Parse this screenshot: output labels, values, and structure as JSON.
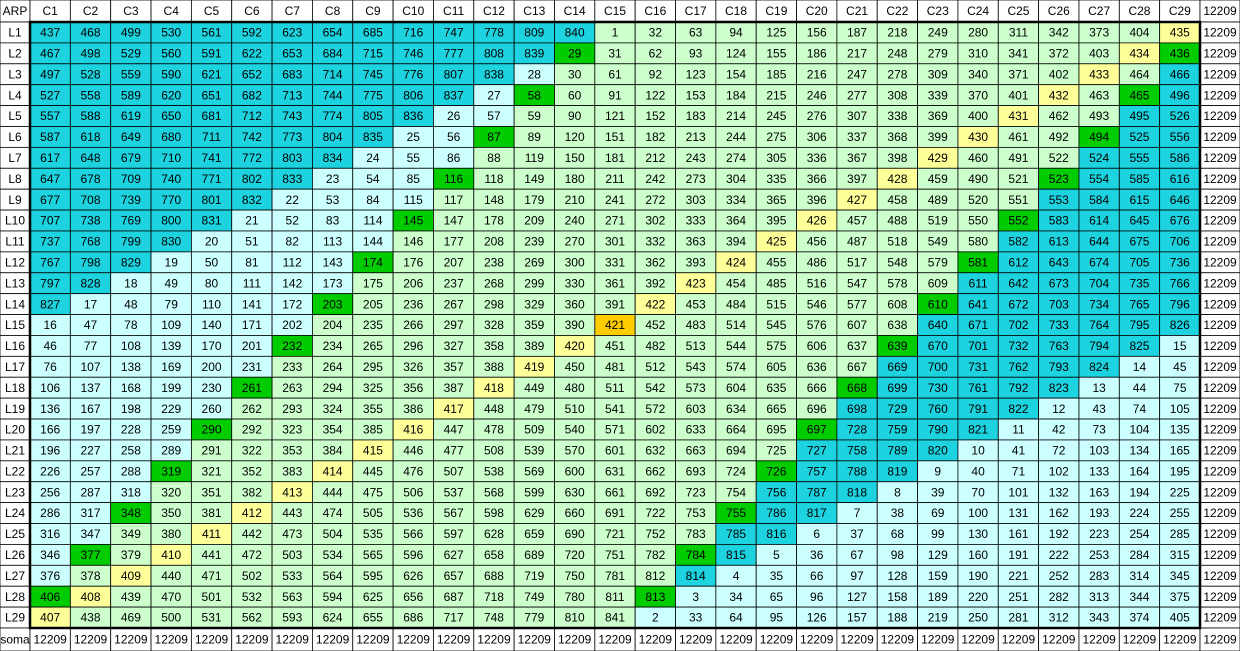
{
  "table": {
    "corner": "ARP",
    "columns": [
      "C1",
      "C2",
      "C3",
      "C4",
      "C5",
      "C6",
      "C7",
      "C8",
      "C9",
      "C10",
      "C11",
      "C12",
      "C13",
      "C14",
      "C15",
      "C16",
      "C17",
      "C18",
      "C19",
      "C20",
      "C21",
      "C22",
      "C23",
      "C24",
      "C25",
      "C26",
      "C27",
      "C28",
      "C29"
    ],
    "header_total": 12209,
    "rows": [
      {
        "label": "L1",
        "values": [
          437,
          468,
          499,
          530,
          561,
          592,
          623,
          654,
          685,
          716,
          747,
          778,
          809,
          840,
          1,
          32,
          63,
          94,
          125,
          156,
          187,
          218,
          249,
          280,
          311,
          342,
          373,
          404,
          435
        ],
        "total": 12209
      },
      {
        "label": "L2",
        "values": [
          467,
          498,
          529,
          560,
          591,
          622,
          653,
          684,
          715,
          746,
          777,
          808,
          839,
          29,
          31,
          62,
          93,
          124,
          155,
          186,
          217,
          248,
          279,
          310,
          341,
          372,
          403,
          434,
          436
        ],
        "total": 12209
      },
      {
        "label": "L3",
        "values": [
          497,
          528,
          559,
          590,
          621,
          652,
          683,
          714,
          745,
          776,
          807,
          838,
          28,
          30,
          61,
          92,
          123,
          154,
          185,
          216,
          247,
          278,
          309,
          340,
          371,
          402,
          433,
          464,
          466
        ],
        "total": 12209
      },
      {
        "label": "L4",
        "values": [
          527,
          558,
          589,
          620,
          651,
          682,
          713,
          744,
          775,
          806,
          837,
          27,
          58,
          60,
          91,
          122,
          153,
          184,
          215,
          246,
          277,
          308,
          339,
          370,
          401,
          432,
          463,
          465,
          496
        ],
        "total": 12209
      },
      {
        "label": "L5",
        "values": [
          557,
          588,
          619,
          650,
          681,
          712,
          743,
          774,
          805,
          836,
          26,
          57,
          59,
          90,
          121,
          152,
          183,
          214,
          245,
          276,
          307,
          338,
          369,
          400,
          431,
          462,
          493,
          495,
          526
        ],
        "total": 12209
      },
      {
        "label": "L6",
        "values": [
          587,
          618,
          649,
          680,
          711,
          742,
          773,
          804,
          835,
          25,
          56,
          87,
          89,
          120,
          151,
          182,
          213,
          244,
          275,
          306,
          337,
          368,
          399,
          430,
          461,
          492,
          494,
          525,
          556
        ],
        "total": 12209
      },
      {
        "label": "L7",
        "values": [
          617,
          648,
          679,
          710,
          741,
          772,
          803,
          834,
          24,
          55,
          86,
          88,
          119,
          150,
          181,
          212,
          243,
          274,
          305,
          336,
          367,
          398,
          429,
          460,
          491,
          522,
          524,
          555,
          586
        ],
        "total": 12209
      },
      {
        "label": "L8",
        "values": [
          647,
          678,
          709,
          740,
          771,
          802,
          833,
          23,
          54,
          85,
          116,
          118,
          149,
          180,
          211,
          242,
          273,
          304,
          335,
          366,
          397,
          428,
          459,
          490,
          521,
          523,
          554,
          585,
          616
        ],
        "total": 12209
      },
      {
        "label": "L9",
        "values": [
          677,
          708,
          739,
          770,
          801,
          832,
          22,
          53,
          84,
          115,
          117,
          148,
          179,
          210,
          241,
          272,
          303,
          334,
          365,
          396,
          427,
          458,
          489,
          520,
          551,
          553,
          584,
          615,
          646
        ],
        "total": 12209
      },
      {
        "label": "L10",
        "values": [
          707,
          738,
          769,
          800,
          831,
          21,
          52,
          83,
          114,
          145,
          147,
          178,
          209,
          240,
          271,
          302,
          333,
          364,
          395,
          426,
          457,
          488,
          519,
          550,
          552,
          583,
          614,
          645,
          676
        ],
        "total": 12209
      },
      {
        "label": "L11",
        "values": [
          737,
          768,
          799,
          830,
          20,
          51,
          82,
          113,
          144,
          146,
          177,
          208,
          239,
          270,
          301,
          332,
          363,
          394,
          425,
          456,
          487,
          518,
          549,
          580,
          582,
          613,
          644,
          675,
          706
        ],
        "total": 12209
      },
      {
        "label": "L12",
        "values": [
          767,
          798,
          829,
          19,
          50,
          81,
          112,
          143,
          174,
          176,
          207,
          238,
          269,
          300,
          331,
          362,
          393,
          424,
          455,
          486,
          517,
          548,
          579,
          581,
          612,
          643,
          674,
          705,
          736
        ],
        "total": 12209
      },
      {
        "label": "L13",
        "values": [
          797,
          828,
          18,
          49,
          80,
          111,
          142,
          173,
          175,
          206,
          237,
          268,
          299,
          330,
          361,
          392,
          423,
          454,
          485,
          516,
          547,
          578,
          609,
          611,
          642,
          673,
          704,
          735,
          766
        ],
        "total": 12209
      },
      {
        "label": "L14",
        "values": [
          827,
          17,
          48,
          79,
          110,
          141,
          172,
          203,
          205,
          236,
          267,
          298,
          329,
          360,
          391,
          422,
          453,
          484,
          515,
          546,
          577,
          608,
          610,
          641,
          672,
          703,
          734,
          765,
          796
        ],
        "total": 12209
      },
      {
        "label": "L15",
        "values": [
          16,
          47,
          78,
          109,
          140,
          171,
          202,
          204,
          235,
          266,
          297,
          328,
          359,
          390,
          421,
          452,
          483,
          514,
          545,
          576,
          607,
          638,
          640,
          671,
          702,
          733,
          764,
          795,
          826
        ],
        "total": 12209
      },
      {
        "label": "L16",
        "values": [
          46,
          77,
          108,
          139,
          170,
          201,
          232,
          234,
          265,
          296,
          327,
          358,
          389,
          420,
          451,
          482,
          513,
          544,
          575,
          606,
          637,
          639,
          670,
          701,
          732,
          763,
          794,
          825,
          15
        ],
        "total": 12209
      },
      {
        "label": "L17",
        "values": [
          76,
          107,
          138,
          169,
          200,
          231,
          233,
          264,
          295,
          326,
          357,
          388,
          419,
          450,
          481,
          512,
          543,
          574,
          605,
          636,
          667,
          669,
          700,
          731,
          762,
          793,
          824,
          14,
          45
        ],
        "total": 12209
      },
      {
        "label": "L18",
        "values": [
          106,
          137,
          168,
          199,
          230,
          261,
          263,
          294,
          325,
          356,
          387,
          418,
          449,
          480,
          511,
          542,
          573,
          604,
          635,
          666,
          668,
          699,
          730,
          761,
          792,
          823,
          13,
          44,
          75
        ],
        "total": 12209
      },
      {
        "label": "L19",
        "values": [
          136,
          167,
          198,
          229,
          260,
          262,
          293,
          324,
          355,
          386,
          417,
          448,
          479,
          510,
          541,
          572,
          603,
          634,
          665,
          696,
          698,
          729,
          760,
          791,
          822,
          12,
          43,
          74,
          105
        ],
        "total": 12209
      },
      {
        "label": "L20",
        "values": [
          166,
          197,
          228,
          259,
          290,
          292,
          323,
          354,
          385,
          416,
          447,
          478,
          509,
          540,
          571,
          602,
          633,
          664,
          695,
          697,
          728,
          759,
          790,
          821,
          11,
          42,
          73,
          104,
          135
        ],
        "total": 12209
      },
      {
        "label": "L21",
        "values": [
          196,
          227,
          258,
          289,
          291,
          322,
          353,
          384,
          415,
          446,
          477,
          508,
          539,
          570,
          601,
          632,
          663,
          694,
          725,
          727,
          758,
          789,
          820,
          10,
          41,
          72,
          103,
          134,
          165
        ],
        "total": 12209
      },
      {
        "label": "L22",
        "values": [
          226,
          257,
          288,
          319,
          321,
          352,
          383,
          414,
          445,
          476,
          507,
          538,
          569,
          600,
          631,
          662,
          693,
          724,
          726,
          757,
          788,
          819,
          9,
          40,
          71,
          102,
          133,
          164,
          195
        ],
        "total": 12209
      },
      {
        "label": "L23",
        "values": [
          256,
          287,
          318,
          320,
          351,
          382,
          413,
          444,
          475,
          506,
          537,
          568,
          599,
          630,
          661,
          692,
          723,
          754,
          756,
          787,
          818,
          8,
          39,
          70,
          101,
          132,
          163,
          194,
          225
        ],
        "total": 12209
      },
      {
        "label": "L24",
        "values": [
          286,
          317,
          348,
          350,
          381,
          412,
          443,
          474,
          505,
          536,
          567,
          598,
          629,
          660,
          691,
          722,
          753,
          755,
          786,
          817,
          7,
          38,
          69,
          100,
          131,
          162,
          193,
          224,
          255
        ],
        "total": 12209
      },
      {
        "label": "L25",
        "values": [
          316,
          347,
          349,
          380,
          411,
          442,
          473,
          504,
          535,
          566,
          597,
          628,
          659,
          690,
          721,
          752,
          783,
          785,
          816,
          6,
          37,
          68,
          99,
          130,
          161,
          192,
          223,
          254,
          285
        ],
        "total": 12209
      },
      {
        "label": "L26",
        "values": [
          346,
          377,
          379,
          410,
          441,
          472,
          503,
          534,
          565,
          596,
          627,
          658,
          689,
          720,
          751,
          782,
          784,
          815,
          5,
          36,
          67,
          98,
          129,
          160,
          191,
          222,
          253,
          284,
          315
        ],
        "total": 12209
      },
      {
        "label": "L27",
        "values": [
          376,
          378,
          409,
          440,
          471,
          502,
          533,
          564,
          595,
          626,
          657,
          688,
          719,
          750,
          781,
          812,
          814,
          4,
          35,
          66,
          97,
          128,
          159,
          190,
          221,
          252,
          283,
          314,
          345
        ],
        "total": 12209
      },
      {
        "label": "L28",
        "values": [
          406,
          408,
          439,
          470,
          501,
          532,
          563,
          594,
          625,
          656,
          687,
          718,
          749,
          780,
          811,
          813,
          3,
          34,
          65,
          96,
          127,
          158,
          189,
          220,
          251,
          282,
          313,
          344,
          375
        ],
        "total": 12209
      },
      {
        "label": "L29",
        "values": [
          407,
          438,
          469,
          500,
          531,
          562,
          593,
          624,
          655,
          686,
          717,
          748,
          779,
          810,
          841,
          2,
          33,
          64,
          95,
          126,
          157,
          188,
          219,
          250,
          281,
          312,
          343,
          374,
          405
        ],
        "total": 12209
      }
    ],
    "footer": {
      "label": "soma",
      "values": [
        12209,
        12209,
        12209,
        12209,
        12209,
        12209,
        12209,
        12209,
        12209,
        12209,
        12209,
        12209,
        12209,
        12209,
        12209,
        12209,
        12209,
        12209,
        12209,
        12209,
        12209,
        12209,
        12209,
        12209,
        12209,
        12209,
        12209,
        12209,
        12209
      ],
      "total": 12209
    },
    "palette": {
      "C": "#1cd3df",
      "l": "#ccffff",
      "g": "#ccffcc",
      "G": "#00cc00",
      "y": "#ffff99",
      "o": "#ffcc00"
    },
    "cell_colors": [
      "CCCCCCCCCCCCCCggggggggggggggy",
      "CCCCCCCCCCCCCGgggggggggggggyG",
      "CCCCCCCCCCCClgggggggggggggygC",
      "CCCCCCCCCCClGggggggggggggygGC",
      "CCCCCCCCCCllggggggggggggyggCC",
      "CCCCCCCCCllGgggggggggggyggGCC",
      "CCCCCCCClllgggggggggggygggCCC",
      "CCCCCCClllGggggggggggygggGCCC",
      "CCCCCCllllggggggggggyggggCCCC",
      "CCCCCllllGgggggggggyggggGCCCC",
      "CCCClllllgggggggggygggggCCCCC",
      "CCClllllGggggggggygggggGCCCCC",
      "CCllllllggggggggyggggggCCCCCC",
      "CllllllGgggggggyggggggGCCCCCC",
      "lllllllgggggggogggggggCCCCCCC",
      "llllllGggggggygggggggGCCCCCCl",
      "llllllggggggyggggggggCCCCCCll",
      "lllllGgggggyggggggggGCCCCClll",
      "lllllgggggygggggggggCCCCCllll",
      "llllGggggygggggggggGCCCClllll",
      "llllggggyggggggggggCCCCllllll",
      "lllGgggyggggggggggGCCClllllll",
      "lllgggygggggggggggCCCllllllll",
      "llGggygggggggggggGCClllllllll",
      "llggyggggggggggggCCllllllllll",
      "lGgyggggggggggggGClllllllllll",
      "lgygggggggggggggCllllllllllll",
      "GygggggggggggggGlllllllllllll",
      "yggggggggggggggllllllllllllll"
    ]
  }
}
